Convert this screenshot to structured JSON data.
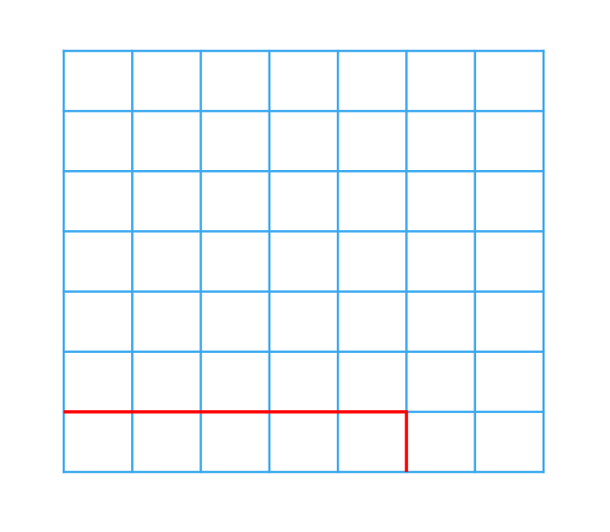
{
  "grid": {
    "columns": 7,
    "rows": 7,
    "line_color": "#3AA8F0"
  },
  "highlight_path": {
    "color": "#FF0000",
    "points": [
      {
        "col": 0,
        "row": 6
      },
      {
        "col": 5,
        "row": 6
      },
      {
        "col": 5,
        "row": 7
      }
    ]
  }
}
